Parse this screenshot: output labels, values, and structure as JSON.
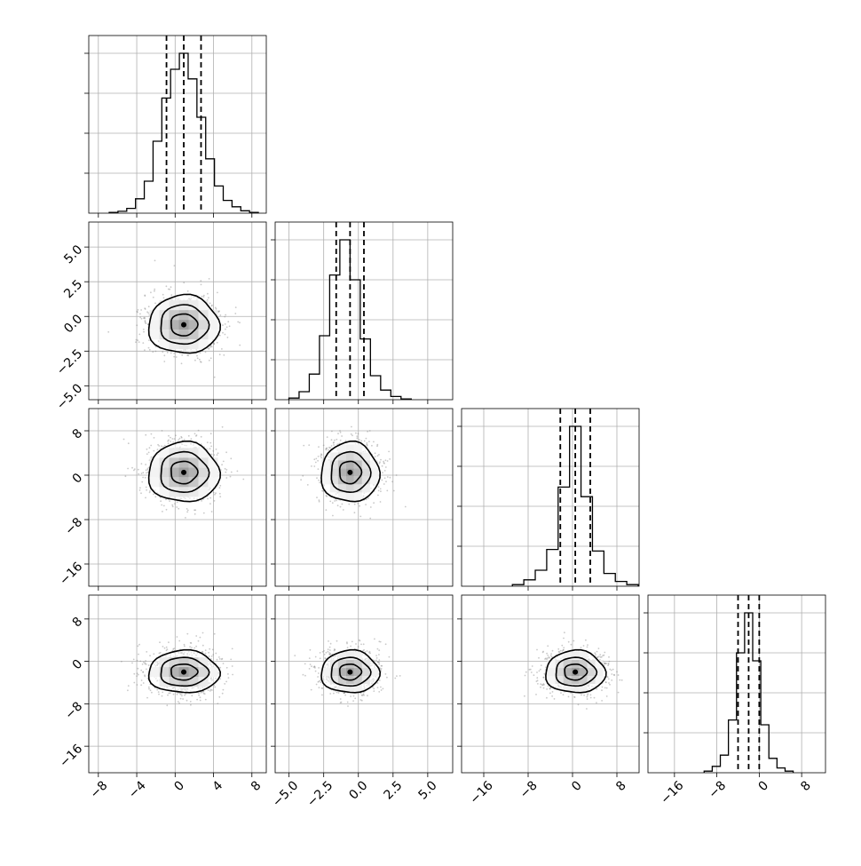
{
  "chart_data": {
    "type": "corner",
    "description_of_quantiles": "dashed lines mark 16th, 50th and 84th percentiles",
    "n_params": 4,
    "params": [
      {
        "range": [
          -9,
          9.5
        ],
        "ticks": [
          -8,
          -4,
          0,
          4,
          8
        ],
        "tick_labels": [
          "−8",
          "−4",
          "0",
          "4",
          "8"
        ],
        "mean": 0.9,
        "sd": 1.85,
        "quantiles": [
          -0.9,
          0.9,
          2.7
        ]
      },
      {
        "range": [
          -6,
          6.8
        ],
        "ticks": [
          -5,
          -2.5,
          0,
          2.5,
          5
        ],
        "tick_labels": [
          "−5.0",
          "−2.5",
          "0.0",
          "2.5",
          "5.0"
        ],
        "mean": -0.6,
        "sd": 1.05,
        "quantiles": [
          -1.6,
          -0.6,
          0.4
        ]
      },
      {
        "range": [
          -20,
          12
        ],
        "ticks": [
          -16,
          -8,
          0,
          8
        ],
        "tick_labels": [
          "−16",
          "−8",
          "0",
          "8"
        ],
        "mean": 0.5,
        "sd": 2.7,
        "quantiles": [
          -2.2,
          0.5,
          3.2
        ]
      },
      {
        "range": [
          -21,
          12.5
        ],
        "ticks": [
          -16,
          -8,
          0,
          8
        ],
        "tick_labels": [
          "−16",
          "−8",
          "0",
          "8"
        ],
        "mean": -2.0,
        "sd": 2.0,
        "quantiles": [
          -4.0,
          -2.0,
          0.0
        ]
      }
    ],
    "histograms": [
      [
        0.005,
        0.012,
        0.03,
        0.09,
        0.2,
        0.45,
        0.72,
        0.9,
        1.0,
        0.84,
        0.6,
        0.34,
        0.17,
        0.08,
        0.04,
        0.015,
        0.005
      ],
      [
        0.01,
        0.05,
        0.16,
        0.4,
        0.78,
        1.0,
        0.75,
        0.38,
        0.15,
        0.06,
        0.02,
        0.005
      ],
      [
        0.01,
        0.04,
        0.1,
        0.23,
        0.62,
        1.0,
        0.56,
        0.22,
        0.08,
        0.03,
        0.01
      ],
      [
        0.01,
        0.04,
        0.11,
        0.33,
        0.75,
        1.0,
        0.7,
        0.3,
        0.09,
        0.03,
        0.01
      ]
    ],
    "grid": true
  }
}
